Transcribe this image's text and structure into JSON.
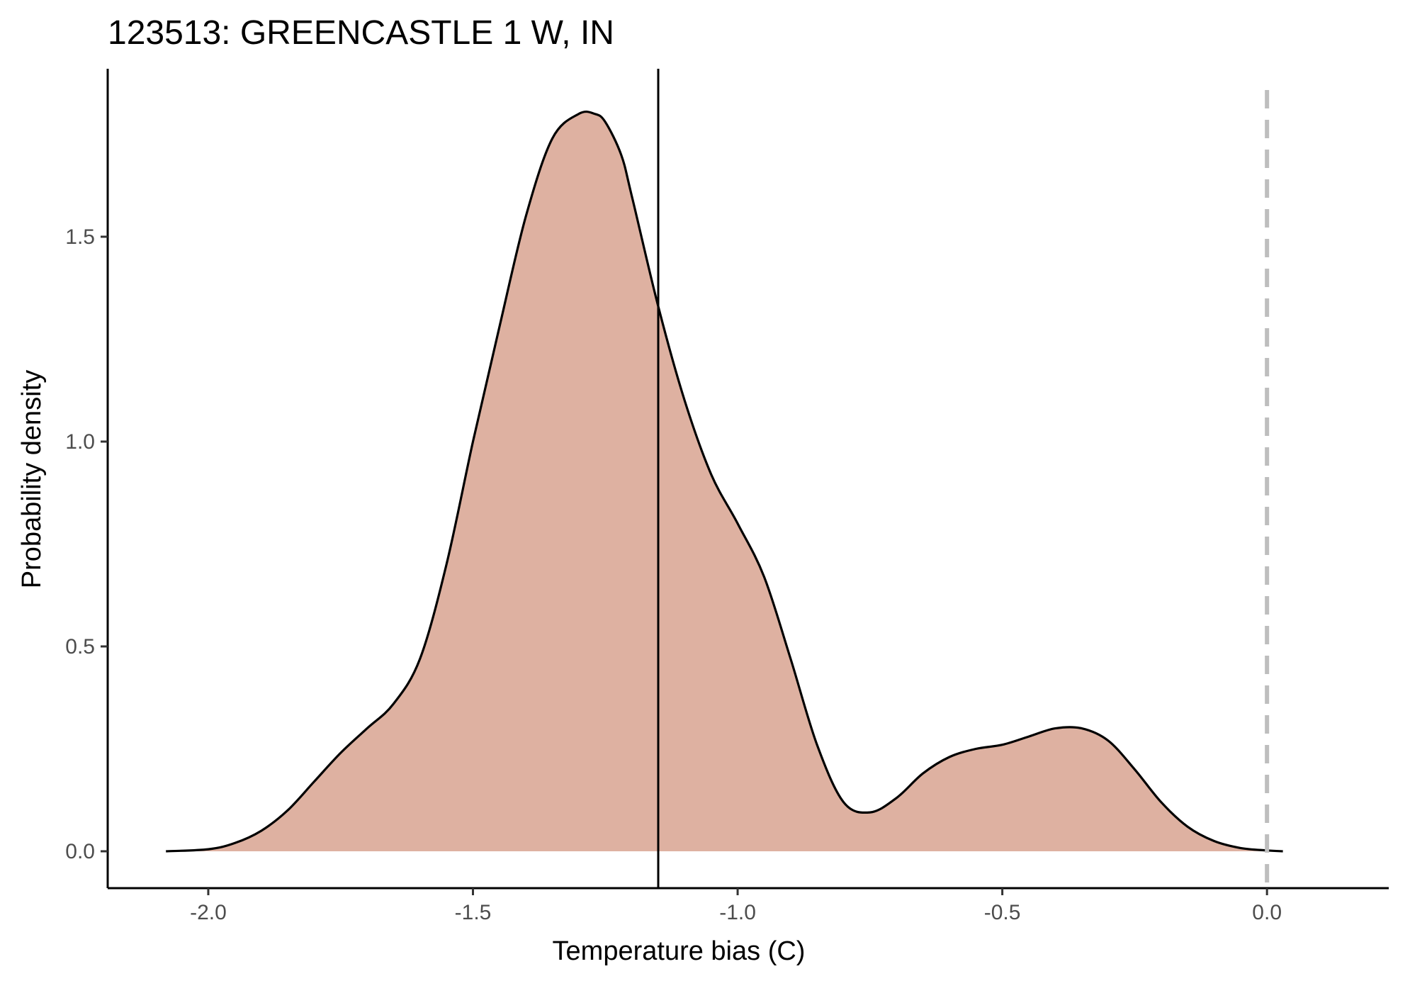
{
  "chart_data": {
    "type": "area",
    "title": "123513: GREENCASTLE 1 W, IN",
    "xlabel": "Temperature bias (C)",
    "ylabel": "Probability density",
    "xlim": [
      -2.19,
      0.23
    ],
    "ylim": [
      -0.09,
      1.91
    ],
    "x_ticks": [
      -2.0,
      -1.5,
      -1.0,
      -0.5,
      0.0
    ],
    "x_tick_labels": [
      "-2.0",
      "-1.5",
      "-1.0",
      "-0.5",
      "0.0"
    ],
    "y_ticks": [
      0.0,
      0.5,
      1.0,
      1.5
    ],
    "y_tick_labels": [
      "0.0",
      "0.5",
      "1.0",
      "1.5"
    ],
    "grid": false,
    "legend": "none",
    "fill_color": "#deb1a1",
    "line_color": "#000000",
    "series": [
      {
        "x": [
          -2.08,
          -2.0,
          -1.95,
          -1.9,
          -1.85,
          -1.8,
          -1.75,
          -1.7,
          -1.65,
          -1.6,
          -1.55,
          -1.5,
          -1.45,
          -1.4,
          -1.35,
          -1.3,
          -1.27,
          -1.25,
          -1.22,
          -1.2,
          -1.15,
          -1.1,
          -1.05,
          -1.0,
          -0.95,
          -0.9,
          -0.85,
          -0.8,
          -0.75,
          -0.7,
          -0.65,
          -0.6,
          -0.55,
          -0.5,
          -0.45,
          -0.4,
          -0.35,
          -0.3,
          -0.25,
          -0.2,
          -0.15,
          -0.1,
          -0.05,
          0.0,
          0.03
        ],
        "y": [
          0.0,
          0.005,
          0.02,
          0.05,
          0.1,
          0.17,
          0.24,
          0.3,
          0.36,
          0.47,
          0.7,
          1.0,
          1.28,
          1.55,
          1.74,
          1.8,
          1.8,
          1.78,
          1.7,
          1.6,
          1.33,
          1.1,
          0.92,
          0.8,
          0.67,
          0.47,
          0.26,
          0.12,
          0.095,
          0.13,
          0.19,
          0.23,
          0.25,
          0.26,
          0.28,
          0.3,
          0.3,
          0.27,
          0.2,
          0.12,
          0.06,
          0.025,
          0.008,
          0.002,
          0.0
        ]
      }
    ],
    "reference_lines": [
      {
        "orientation": "vertical",
        "x": -1.15,
        "style": "solid",
        "color": "#000000"
      },
      {
        "orientation": "vertical",
        "x": 0.0,
        "style": "dashed",
        "color": "#bebebe"
      }
    ]
  }
}
